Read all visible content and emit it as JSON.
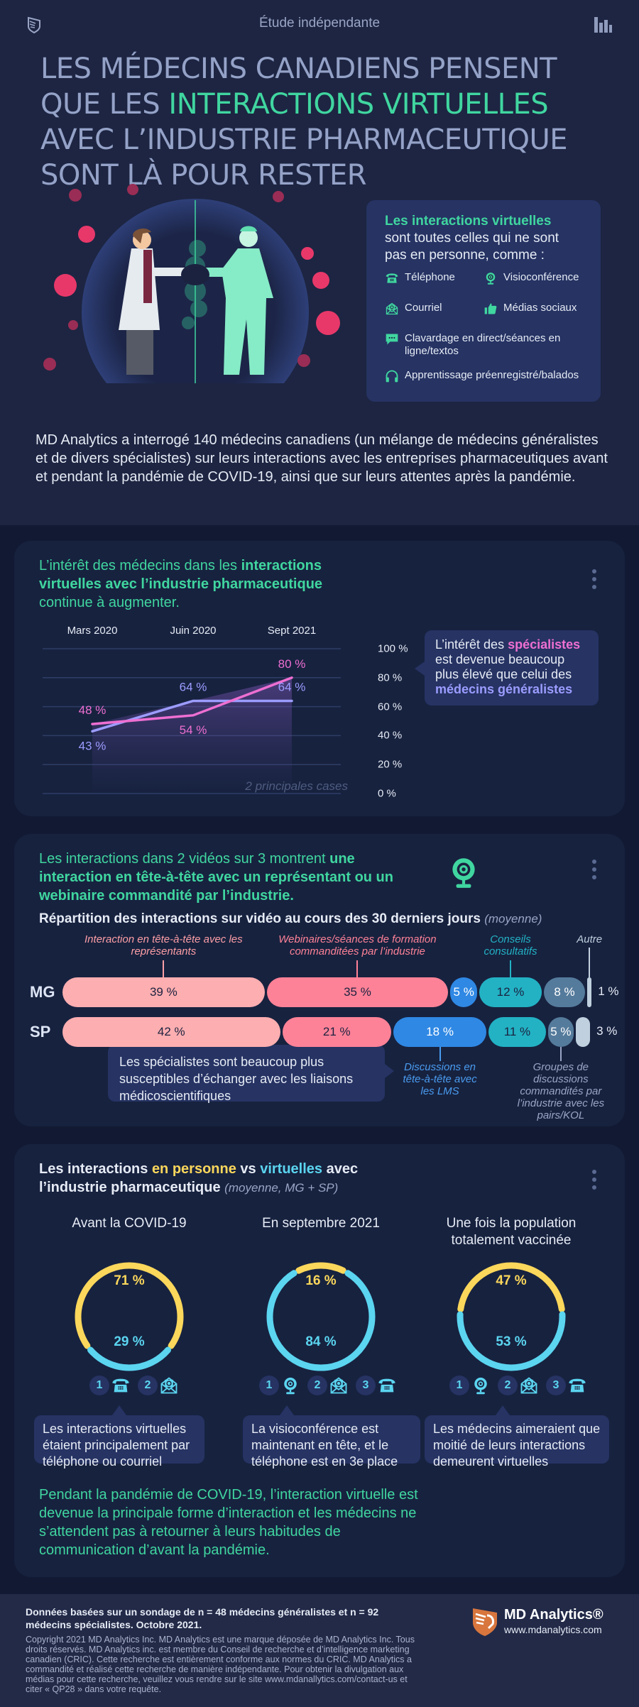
{
  "header": {
    "study_label": "Étude indépendante",
    "headline_part1": "LES MÉDECINS CANADIENS PENSENT QUE LES ",
    "headline_highlight": "INTERACTIONS VIRTUELLES",
    "headline_part2": " AVEC L’INDUSTRIE PHARMACEUTIQUE SONT LÀ POUR RESTER"
  },
  "definition": {
    "title": "Les interactions virtuelles",
    "subtitle": "sont toutes celles qui ne sont pas en personne, comme :",
    "items": [
      {
        "icon": "phone-icon",
        "label": "Téléphone"
      },
      {
        "icon": "webcam-icon",
        "label": "Visioconférence"
      },
      {
        "icon": "email-icon",
        "label": "Courriel"
      },
      {
        "icon": "thumbs-up-icon",
        "label": "Médias sociaux"
      },
      {
        "icon": "chat-icon",
        "label": "Clavardage en direct/séances en ligne/textos"
      },
      {
        "icon": "headphones-icon",
        "label": "Apprentissage préenregistré/balados"
      }
    ]
  },
  "intro": "MD Analytics a interrogé 140 médecins canadiens (un mélange de médecins généralistes et de divers spécialistes) sur leurs interactions avec les entreprises pharmaceutiques avant et pendant la pandémie de COVID-19, ainsi que sur leurs attentes après la pandémie.",
  "card1": {
    "title_pre": "L’intérêt des médecins dans les ",
    "title_bold": "interactions virtuelles avec l’industrie pharmaceutique",
    "title_post": " continue à augmenter.",
    "ghost_label": "2 principales cases",
    "callout_pre": "L’intérêt des ",
    "callout_sp": "spécialistes",
    "callout_mid": " est devenue beaucoup plus élevé que celui des ",
    "callout_mg": "médecins généralistes",
    "colors": {
      "specialists": "#ee6fd2",
      "generalists": "#9c9cff"
    }
  },
  "chart_data": [
    {
      "type": "line",
      "title": "L’intérêt des médecins dans les interactions virtuelles avec l’industrie pharmaceutique continue à augmenter.",
      "categories": [
        "Mars 2020",
        "Juin 2020",
        "Sept 2021"
      ],
      "series": [
        {
          "name": "Spécialistes",
          "values": [
            48,
            54,
            80
          ],
          "labels": [
            "48 %",
            "54 %",
            "80 %"
          ]
        },
        {
          "name": "Médecins généralistes",
          "values": [
            43,
            64,
            64
          ],
          "labels": [
            "43 %",
            "64 %",
            "64 %"
          ]
        }
      ],
      "yticks": [
        "100 %",
        "80 %",
        "60 %",
        "40 %",
        "20 %",
        "0 %"
      ],
      "ylim": [
        0,
        100
      ],
      "annotation": "2 principales cases",
      "grid": true
    },
    {
      "type": "bar",
      "stacked": true,
      "orientation": "horizontal",
      "title": "Répartition des interactions sur vidéo au cours des 30 derniers jours",
      "subtitle": "(moyenne)",
      "categories": [
        "MG",
        "SP"
      ],
      "series": [
        {
          "name": "Interaction en tête-à-tête avec les représentants",
          "color": "#fdaeb0",
          "values": [
            39,
            42
          ]
        },
        {
          "name": "Webinaires/séances de formation commanditées par l’industrie",
          "color": "#fe8297",
          "values": [
            35,
            21
          ]
        },
        {
          "name": "Discussions en tête-à-tête avec les LMS",
          "color": "#2f88e4",
          "values": [
            5,
            18
          ]
        },
        {
          "name": "Conseils consultatifs",
          "color": "#22b2c4",
          "values": [
            12,
            11
          ]
        },
        {
          "name": "Groupes de discussions commandités par l’industrie avec les pairs/KOL",
          "color": "#557b9c",
          "values": [
            8,
            5
          ]
        },
        {
          "name": "Autre",
          "color": "#c0d0de",
          "values": [
            1,
            3
          ]
        }
      ]
    },
    {
      "type": "pie",
      "title": "Les interactions en personne vs virtuelles avec l’industrie pharmaceutique (moyenne, MG + SP)",
      "groups": [
        {
          "label": "Avant la COVID-19",
          "in_person": 71,
          "virtual": 29
        },
        {
          "label": "En septembre 2021",
          "in_person": 16,
          "virtual": 84
        },
        {
          "label": "Une fois la population totalement vaccinée",
          "in_person": 47,
          "virtual": 53
        }
      ],
      "colors": {
        "in_person": "#fbd75b",
        "virtual": "#5bd5f0"
      }
    }
  ],
  "card2": {
    "title_pre": "Les interactions dans 2 vidéos sur 3 montrent ",
    "title_bold": "une interaction en tête-à-tête avec un représentant ou un webinaire commandité par l’industrie.",
    "subtitle": "Répartition des interactions sur vidéo au cours des 30 derniers jours",
    "subtitle_note": "(moyenne)",
    "rows": [
      {
        "label": "MG",
        "segments": [
          "39 %",
          "35 %",
          "5 %",
          "12 %",
          "8 %",
          ""
        ],
        "tail": "1 %"
      },
      {
        "label": "SP",
        "segments": [
          "42 %",
          "21 %",
          "18 %",
          "11 %",
          "5 %",
          ""
        ],
        "tail": "3 %"
      }
    ],
    "top_labels": [
      "Interaction en tête-à-tête avec les représentants",
      "Webinaires/séances de formation commanditées par l’industrie",
      "Conseils consultatifs",
      "Autre"
    ],
    "bottom_labels": [
      "Discussions en tête-à-tête avec les LMS",
      "Groupes de discussions commandités par l’industrie avec les pairs/KOL"
    ],
    "callout": "Les spécialistes sont beaucoup plus susceptibles d’échanger avec les liaisons médicoscientifiques"
  },
  "card3": {
    "title_pre": "Les interactions ",
    "title_inperson": "en personne",
    "title_vs": " vs ",
    "title_virtual": "virtuelles",
    "title_post": " avec l’industrie pharmaceutique ",
    "title_note": "(moyenne, MG + SP)",
    "periods": [
      {
        "label": "Avant la COVID-19",
        "top": "71 %",
        "bottom": "29 %",
        "ranks": [
          {
            "n": "1",
            "icon": "phone-icon"
          },
          {
            "n": "2",
            "icon": "email-icon"
          }
        ],
        "bubble": "Les interactions virtuelles étaient principalement par téléphone ou courriel"
      },
      {
        "label": "En septembre 2021",
        "top": "16 %",
        "bottom": "84 %",
        "ranks": [
          {
            "n": "1",
            "icon": "webcam-icon"
          },
          {
            "n": "2",
            "icon": "email-icon"
          },
          {
            "n": "3",
            "icon": "phone-icon"
          }
        ],
        "bubble": "La visioconférence est maintenant en tête, et le téléphone est en 3e place"
      },
      {
        "label": "Une fois la population totalement vaccinée",
        "top": "47 %",
        "bottom": "53 %",
        "ranks": [
          {
            "n": "1",
            "icon": "webcam-icon"
          },
          {
            "n": "2",
            "icon": "email-icon"
          },
          {
            "n": "3",
            "icon": "phone-icon"
          }
        ],
        "bubble": "Les médecins aimeraient que moitié de leurs interactions demeurent virtuelles"
      }
    ],
    "conclusion": "Pendant la pandémie de COVID-19, l’interaction virtuelle est devenue la principale forme d’interaction et les médecins ne s’attendent pas à retourner à leurs habitudes de communication d’avant la pandémie."
  },
  "footer": {
    "main": "Données basées sur un sondage de n = 48 médecins généralistes et n = 92 médecins spécialistes. Octobre 2021.",
    "copyright": "Copyright 2021 MD Analytics Inc. MD Analytics est une marque déposée de MD Analytics Inc. Tous droits réservés. MD Analytics inc. est membre du Conseil de recherche et d’intelligence marketing canadien (CRIC). Cette recherche est entièrement conforme aux normes du CRIC. MD Analytics a commandité et réalisé cette recherche de manière indépendante. Pour obtenir la divulgation aux médias pour cette recherche, veuillez vous rendre sur le site www.mdanallytics.com/contact-us et citer « QP28 » dans votre requête.",
    "brand": "MD Analytics®",
    "url": "www.mdanalytics.com"
  }
}
